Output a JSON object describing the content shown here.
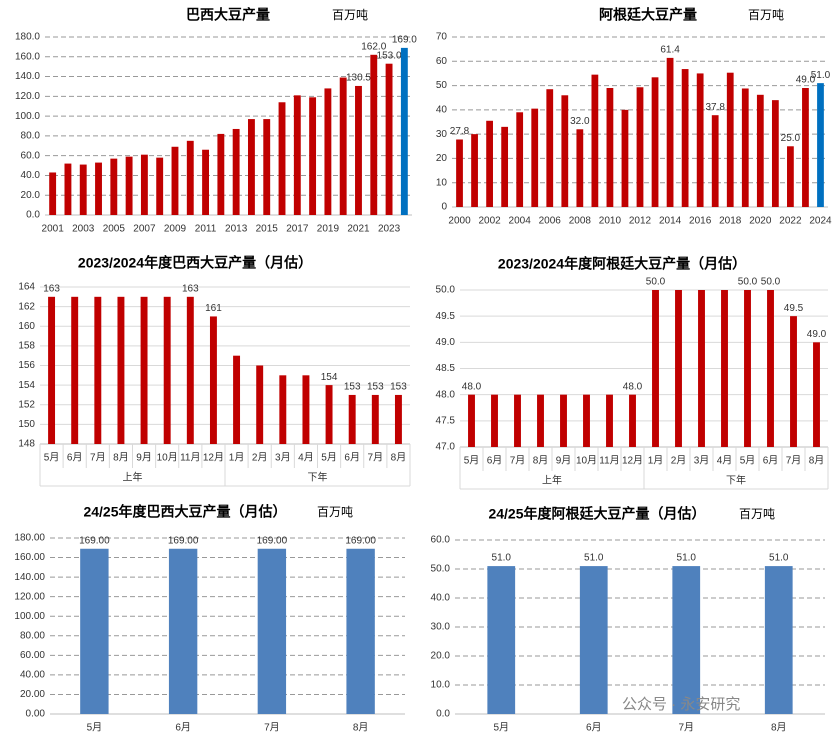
{
  "chart_data": [
    {
      "type": "bar",
      "title": "巴西大豆产量",
      "subtitle": "百万吨",
      "categories": [
        "2001",
        null,
        "2003",
        null,
        "2005",
        null,
        "2007",
        null,
        "2009",
        null,
        "2011",
        null,
        "2013",
        null,
        "2015",
        null,
        "2017",
        null,
        "2019",
        null,
        "2021",
        null,
        "2023",
        null
      ],
      "values": [
        43,
        52,
        51,
        53,
        57,
        59,
        61,
        58,
        69,
        75,
        66,
        82,
        87,
        97,
        97,
        114,
        121,
        119,
        128,
        139,
        130.5,
        162,
        153,
        169
      ],
      "value_labels": [
        null,
        null,
        null,
        null,
        null,
        null,
        null,
        null,
        null,
        null,
        null,
        null,
        null,
        null,
        null,
        null,
        null,
        null,
        null,
        null,
        "130.5",
        "162.0",
        "153.0",
        "169.0"
      ],
      "colors": [
        "#c00000",
        "#c00000",
        "#c00000",
        "#c00000",
        "#c00000",
        "#c00000",
        "#c00000",
        "#c00000",
        "#c00000",
        "#c00000",
        "#c00000",
        "#c00000",
        "#c00000",
        "#c00000",
        "#c00000",
        "#c00000",
        "#c00000",
        "#c00000",
        "#c00000",
        "#c00000",
        "#c00000",
        "#c00000",
        "#c00000",
        "#0070c0"
      ],
      "ylim": [
        0,
        180
      ],
      "yticks": [
        {
          "value": 0,
          "label": "0.0"
        },
        {
          "value": 20,
          "label": "20.0"
        },
        {
          "value": 40,
          "label": "40.0"
        },
        {
          "value": 60,
          "label": "60.0"
        },
        {
          "value": 80,
          "label": "80.0"
        },
        {
          "value": 100,
          "label": "100.0"
        },
        {
          "value": 120,
          "label": "120.0"
        },
        {
          "value": 140,
          "label": "140.0"
        },
        {
          "value": 160,
          "label": "160.0"
        },
        {
          "value": 180,
          "label": "180.0"
        }
      ],
      "grid": "dashed"
    },
    {
      "type": "bar",
      "title": "阿根廷大豆产量",
      "subtitle": "百万吨",
      "categories": [
        "2000",
        null,
        "2002",
        null,
        "2004",
        null,
        "2006",
        null,
        "2008",
        null,
        "2010",
        null,
        "2012",
        null,
        "2014",
        null,
        "2016",
        null,
        "2018",
        null,
        "2020",
        null,
        "2022",
        null,
        "2024"
      ],
      "values": [
        27.8,
        30,
        35.5,
        33,
        39,
        40.5,
        48.5,
        46,
        32,
        54.5,
        49,
        40,
        49.3,
        53.4,
        61.4,
        56.8,
        55,
        37.8,
        55.3,
        48.8,
        46.2,
        44,
        25,
        49,
        51
      ],
      "value_labels": [
        "27.8",
        null,
        null,
        null,
        null,
        null,
        null,
        null,
        "32.0",
        null,
        null,
        null,
        null,
        null,
        "61.4",
        null,
        null,
        "37.8",
        null,
        null,
        null,
        null,
        "25.0",
        "49.0",
        "51.0"
      ],
      "colors": [
        "#c00000",
        "#c00000",
        "#c00000",
        "#c00000",
        "#c00000",
        "#c00000",
        "#c00000",
        "#c00000",
        "#c00000",
        "#c00000",
        "#c00000",
        "#c00000",
        "#c00000",
        "#c00000",
        "#c00000",
        "#c00000",
        "#c00000",
        "#c00000",
        "#c00000",
        "#c00000",
        "#c00000",
        "#c00000",
        "#c00000",
        "#c00000",
        "#0070c0"
      ],
      "ylim": [
        0,
        70
      ],
      "yticks": [
        0,
        10,
        20,
        30,
        40,
        50,
        60,
        70
      ],
      "grid": "dashed"
    },
    {
      "type": "bar",
      "title": "2023/2024年度巴西大豆产量（月估）",
      "categories": [
        "5月",
        "6月",
        "7月",
        "8月",
        "9月",
        "10月",
        "11月",
        "12月",
        "1月",
        "2月",
        "3月",
        "4月",
        "5月",
        "6月",
        "7月",
        "8月"
      ],
      "groups": [
        "上年",
        "下年"
      ],
      "values": [
        163,
        163,
        163,
        163,
        163,
        163,
        163,
        161,
        157,
        156,
        155,
        155,
        154,
        153,
        153,
        153
      ],
      "value_labels": [
        "163",
        null,
        null,
        null,
        null,
        null,
        "163",
        "161",
        null,
        null,
        null,
        null,
        "154",
        "153",
        "153",
        "153"
      ],
      "color": "#c00000",
      "ylim": [
        148,
        164
      ],
      "yticks": [
        148,
        150,
        152,
        154,
        156,
        158,
        160,
        162,
        164
      ],
      "grid": "solid"
    },
    {
      "type": "bar",
      "title": "2023/2024年度阿根廷大豆产量（月估）",
      "categories": [
        "5月",
        "6月",
        "7月",
        "8月",
        "9月",
        "10月",
        "11月",
        "12月",
        "1月",
        "2月",
        "3月",
        "4月",
        "5月",
        "6月",
        "7月",
        "8月"
      ],
      "groups": [
        "上年",
        "下年"
      ],
      "values": [
        48,
        48,
        48,
        48,
        48,
        48,
        48,
        48,
        50,
        50,
        50,
        50,
        50,
        50,
        49.5,
        49
      ],
      "value_labels": [
        "48.0",
        null,
        null,
        null,
        null,
        null,
        null,
        "48.0",
        "50.0",
        null,
        null,
        null,
        "50.0",
        "50.0",
        "49.5",
        "49.0"
      ],
      "color": "#c00000",
      "ylim": [
        47,
        50
      ],
      "yticks": [
        {
          "value": 47,
          "label": "47.0"
        },
        {
          "value": 47.5,
          "label": "47.5"
        },
        {
          "value": 48,
          "label": "48.0"
        },
        {
          "value": 48.5,
          "label": "48.5"
        },
        {
          "value": 49,
          "label": "49.0"
        },
        {
          "value": 49.5,
          "label": "49.5"
        },
        {
          "value": 50,
          "label": "50.0"
        }
      ],
      "grid": "solid"
    },
    {
      "type": "bar",
      "title": "24/25年度巴西大豆产量（月估）",
      "subtitle": "百万吨",
      "categories": [
        "5月",
        "6月",
        "7月",
        "8月"
      ],
      "values": [
        169,
        169,
        169,
        169
      ],
      "value_labels": [
        "169.00",
        "169.00",
        "169.00",
        "169.00"
      ],
      "color": "#4f81bd",
      "ylim": [
        0,
        180
      ],
      "yticks": [
        {
          "value": 0,
          "label": "0.00"
        },
        {
          "value": 20,
          "label": "20.00"
        },
        {
          "value": 40,
          "label": "40.00"
        },
        {
          "value": 60,
          "label": "60.00"
        },
        {
          "value": 80,
          "label": "80.00"
        },
        {
          "value": 100,
          "label": "100.00"
        },
        {
          "value": 120,
          "label": "120.00"
        },
        {
          "value": 140,
          "label": "140.00"
        },
        {
          "value": 160,
          "label": "160.00"
        },
        {
          "value": 180,
          "label": "180.00"
        }
      ],
      "grid": "dashed"
    },
    {
      "type": "bar",
      "title": "24/25年度阿根廷大豆产量（月估）",
      "subtitle": "百万吨",
      "categories": [
        "5月",
        "6月",
        "7月",
        "8月"
      ],
      "values": [
        51,
        51,
        51,
        51
      ],
      "value_labels": [
        "51.0",
        "51.0",
        "51.0",
        "51.0"
      ],
      "color": "#4f81bd",
      "ylim": [
        0,
        60
      ],
      "yticks": [
        {
          "value": 0,
          "label": "0.0"
        },
        {
          "value": 10,
          "label": "10.0"
        },
        {
          "value": 20,
          "label": "20.0"
        },
        {
          "value": 30,
          "label": "30.0"
        },
        {
          "value": 40,
          "label": "40.0"
        },
        {
          "value": 50,
          "label": "50.0"
        },
        {
          "value": 60,
          "label": "60.0"
        }
      ],
      "grid": "dashed"
    }
  ],
  "watermark": "公众号 · 永安研究"
}
